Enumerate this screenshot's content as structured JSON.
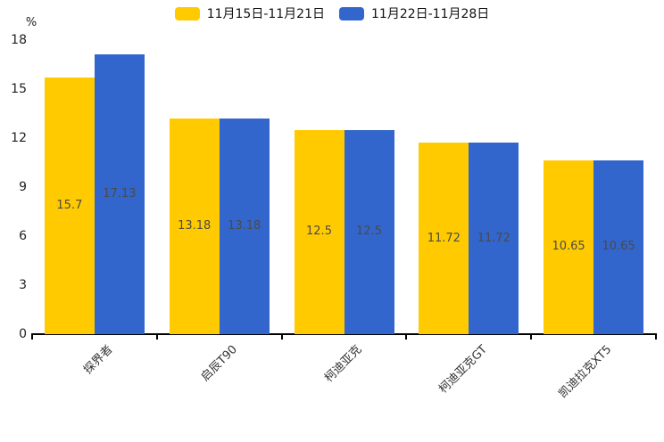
{
  "chart_data": {
    "type": "bar",
    "title": "",
    "categories": [
      "探界者",
      "启辰T90",
      "柯迪亚克",
      "柯迪亚克GT",
      "凯迪拉克XT5"
    ],
    "series": [
      {
        "name": "11月15日-11月21日",
        "color": "#FFCB00",
        "values": [
          15.7,
          13.18,
          12.5,
          11.72,
          10.65
        ]
      },
      {
        "name": "11月22日-11月28日",
        "color": "#3366CC",
        "values": [
          17.13,
          13.18,
          12.5,
          11.72,
          10.65
        ]
      }
    ],
    "xlabel": "",
    "ylabel": "%",
    "yticks": [
      0,
      3,
      6,
      9,
      12,
      15,
      18
    ],
    "ylim": [
      0,
      18
    ],
    "legend_position": "top-center",
    "grid": false,
    "value_labels": true,
    "background": "#ffffff",
    "axis_color": "#000000"
  }
}
